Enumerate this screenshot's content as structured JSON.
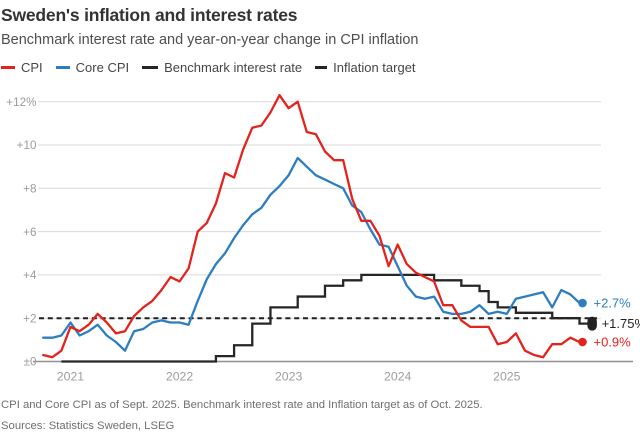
{
  "header": {
    "title": "Sweden's inflation and interest rates",
    "subtitle": "Benchmark interest rate and year-on-year change in CPI inflation"
  },
  "legend": [
    {
      "label": "CPI",
      "color": "#e2231e",
      "style": "solid",
      "width": 14
    },
    {
      "label": "Core CPI",
      "color": "#2d7dbf",
      "style": "solid",
      "width": 14
    },
    {
      "label": "Benchmark interest rate",
      "color": "#262626",
      "style": "solid",
      "width": 16
    },
    {
      "label": "Inflation target",
      "color": "#262626",
      "style": "dashed",
      "width": 12
    }
  ],
  "chart_data": {
    "type": "line",
    "title": "Sweden's inflation and interest rates",
    "subtitle": "Benchmark interest rate and year-on-year change in CPI inflation",
    "x_start": "2020-10",
    "x_frequency": "monthly",
    "ylim": [
      0,
      12.6
    ],
    "grid": "horizontal",
    "y_axis": {
      "ticks": [
        {
          "label": "+12%",
          "value": 12
        },
        {
          "label": "+10",
          "value": 10
        },
        {
          "label": "+8",
          "value": 8
        },
        {
          "label": "+6",
          "value": 6
        },
        {
          "label": "+4",
          "value": 4
        },
        {
          "label": "+2",
          "value": 2
        },
        {
          "label": "±0",
          "value": 0
        }
      ]
    },
    "x_axis": {
      "ticks": [
        {
          "label": "2021",
          "month_index": 3
        },
        {
          "label": "2022",
          "month_index": 15
        },
        {
          "label": "2023",
          "month_index": 27
        },
        {
          "label": "2024",
          "month_index": 39
        },
        {
          "label": "2025",
          "month_index": 51
        }
      ]
    },
    "target_value": 2,
    "series": [
      {
        "name": "Benchmark interest rate",
        "color": "#262626",
        "line_style": "step",
        "end_label": "+1.75%",
        "end_marker": "pill",
        "values": [
          null,
          null,
          0,
          0,
          0,
          0,
          0,
          0,
          0,
          0,
          0,
          0,
          0,
          0,
          0,
          0,
          0,
          0,
          0,
          0.25,
          0.25,
          0.75,
          0.75,
          1.75,
          1.75,
          2.5,
          2.5,
          2.5,
          3.0,
          3.0,
          3.0,
          3.5,
          3.5,
          3.75,
          3.75,
          4.0,
          4.0,
          4.0,
          4.0,
          4.0,
          4.0,
          4.0,
          4.0,
          3.75,
          3.75,
          3.75,
          3.5,
          3.5,
          3.25,
          2.75,
          2.5,
          2.5,
          2.25,
          2.25,
          2.25,
          2.25,
          2.0,
          2.0,
          2.0,
          1.75,
          1.75
        ]
      },
      {
        "name": "Core CPI",
        "color": "#2d7dbf",
        "line_style": "solid",
        "end_label": "+2.7%",
        "end_marker": "circle",
        "values": [
          1.1,
          1.1,
          1.2,
          1.8,
          1.2,
          1.4,
          1.7,
          1.2,
          0.9,
          0.5,
          1.4,
          1.5,
          1.8,
          1.9,
          1.8,
          1.8,
          1.7,
          2.8,
          3.8,
          4.5,
          5.0,
          5.7,
          6.3,
          6.8,
          7.1,
          7.7,
          8.1,
          8.6,
          9.4,
          9.0,
          8.6,
          8.4,
          8.2,
          8.0,
          7.2,
          6.9,
          6.1,
          5.4,
          5.3,
          4.4,
          3.5,
          3.0,
          2.9,
          3.0,
          2.3,
          2.2,
          2.2,
          2.3,
          2.6,
          2.2,
          2.3,
          2.2,
          2.9,
          3.0,
          3.1,
          3.2,
          2.5,
          3.3,
          3.1,
          2.7
        ]
      },
      {
        "name": "CPI",
        "color": "#e2231e",
        "line_style": "solid",
        "end_label": "+0.9%",
        "end_marker": "circle",
        "values": [
          0.3,
          0.2,
          0.5,
          1.6,
          1.4,
          1.7,
          2.2,
          1.8,
          1.3,
          1.4,
          2.1,
          2.5,
          2.8,
          3.3,
          3.9,
          3.7,
          4.3,
          6.0,
          6.4,
          7.3,
          8.7,
          8.5,
          9.8,
          10.8,
          10.9,
          11.5,
          12.3,
          11.7,
          12.0,
          10.6,
          10.5,
          9.7,
          9.3,
          9.3,
          7.5,
          6.5,
          6.5,
          5.8,
          4.4,
          5.4,
          4.5,
          4.1,
          3.9,
          3.7,
          2.6,
          2.6,
          1.9,
          1.6,
          1.6,
          1.6,
          0.8,
          0.9,
          1.3,
          0.5,
          0.3,
          0.2,
          0.8,
          0.8,
          1.1,
          0.9
        ]
      }
    ],
    "colors": {
      "grid": "#d9d9d9",
      "zero_axis": "#909090",
      "tick_text": "#9c9c9c",
      "target": "#1f1f1f"
    }
  },
  "footer": {
    "note": "CPI and Core CPI as of Sept. 2025. Benchmark interest rate and Inflation target as of Oct. 2025.",
    "sources": "Sources: Statistics Sweden, LSEG"
  }
}
